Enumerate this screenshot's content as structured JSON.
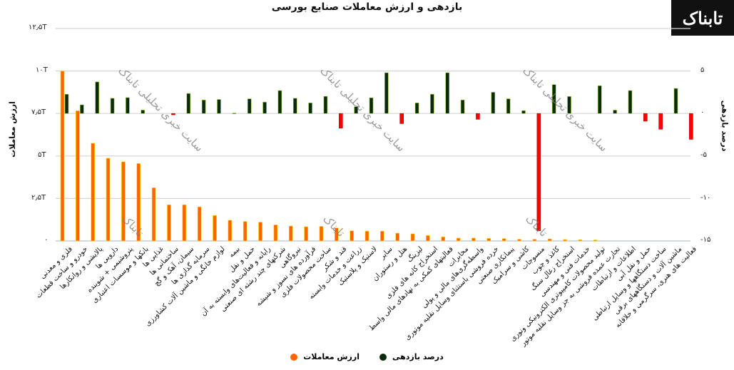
{
  "chart_data": {
    "type": "bar",
    "title": "بازدهی و ارزش معاملات صنایع بورسی",
    "ylabel_left": "ارزش معاملات",
    "ylabel_right": "درصد بازدهی",
    "ylim_left": [
      0,
      12.5
    ],
    "ylim_right": [
      -15,
      10
    ],
    "yticks_left": [
      "۱۲٫۵T",
      "۱۰T",
      "۷٫۵T",
      "۵T",
      "۲٫۵T",
      "۰"
    ],
    "yticks_right": [
      "۵",
      "۰",
      "-۵",
      "-۱۰",
      "-۱۵"
    ],
    "grid": true,
    "legend_position": "bottom",
    "categories": [
      "فلزی و معدنی",
      "خودرو و ساخت قطعات",
      "پالایشی و روانکارها",
      "دارویی ها",
      "پتروشیمی + شوینده",
      "بانکها و موسسات اعتباری",
      "غذایی ها",
      "ساختمانی ها",
      "سیمان، آهک و گچ",
      "سرمایه گذاری ها",
      "لوازم خانگی و ماشین آلات کشاورزی",
      "بیمه",
      "حمل و نقل",
      "رایانه و فعالیت‌های وابسته به آن",
      "شرکتهای چند رشته ای صنعتی",
      "نیروگاهی",
      "فرآورده های نسوز و شیشه",
      "ساخت محصولات فلزی",
      "قند و شکر",
      "زراعت و خدمات وابسته",
      "لاستیک و پلاستیک",
      "سایر",
      "هتل و رستوران",
      "لیزینگ",
      "استخراج کانه های فلزی",
      "فعالیتهای کمکی به نهادهای مالی واسط",
      "مخابرات",
      "واسطه‌گری‌های مالی و پولی",
      "خرده فروشی باستثنای وسایل نقلیه موتوری",
      "پیمانکاری صنعتی",
      "کاشی و سرامیک",
      "منسوجات",
      "کاغذ و چوب",
      "استخراج زغال سنگ",
      "خدمات فنی و مهندسی",
      "تولید محصولات کامپیوتری الکترونیکی ونوری",
      "تجارت عمده فروشی به جز وسایل نقلیه موتور",
      "اطلاعات و ارتباطات",
      "حمل و نقل آبی",
      "ساخت دستگاهها و وسایل ارتباطی",
      "ماشین آلات و دستگاههای برقی",
      "فعالیت های هنری، سرگرمی و خلاقانه"
    ],
    "series": [
      {
        "name": "ارزش معاملات",
        "axis": "left",
        "unit": "T",
        "color": "#FF6600",
        "values": [
          10.0,
          7.66,
          5.75,
          4.87,
          4.66,
          4.56,
          3.13,
          2.13,
          2.13,
          2.01,
          1.5,
          1.22,
          1.15,
          1.11,
          0.95,
          0.88,
          0.84,
          0.86,
          0.77,
          0.6,
          0.58,
          0.58,
          0.46,
          0.42,
          0.32,
          0.24,
          0.17,
          0.17,
          0.15,
          0.14,
          0.1,
          0.1,
          0.12,
          0.08,
          0.07,
          0.06,
          0,
          0,
          0,
          0,
          0,
          0
        ]
      },
      {
        "name": "درصد بازدهی",
        "axis": "right",
        "unit": "%",
        "color": "#0B2A0B",
        "negative_color": "#FF0000",
        "values": [
          2.27,
          1.02,
          3.72,
          1.79,
          1.87,
          0.4,
          0,
          -0.15,
          2.36,
          1.59,
          1.65,
          0.05,
          1.73,
          1.34,
          2.7,
          1.79,
          1.25,
          2.02,
          -1.73,
          0.8,
          1.85,
          4.8,
          -1.19,
          1.25,
          2.27,
          4.8,
          1.59,
          -0.68,
          2.5,
          1.73,
          0.34,
          -13.8,
          3.4,
          2.0,
          0,
          3.27,
          0.4,
          2.7,
          -0.9,
          -1.85,
          2.95,
          -3.04
        ]
      }
    ]
  },
  "logo": "تابناک",
  "watermark": "سایت خبری تحلیلی تابناک",
  "watermark_short": "تابناک"
}
